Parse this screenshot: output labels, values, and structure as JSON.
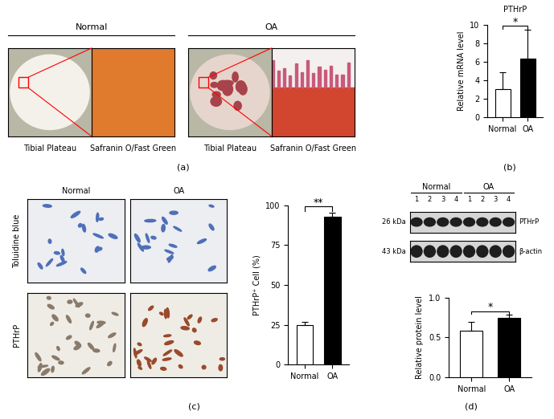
{
  "figure": {
    "a": {
      "label": "(a)",
      "groups": [
        {
          "name": "Normal",
          "captions": [
            "Tibial Plateau",
            "Safranin O/Fast Green"
          ]
        },
        {
          "name": "OA",
          "captions": [
            "Tibial Plateau",
            "Safranin O/Fast Green"
          ]
        }
      ]
    },
    "b": {
      "label": "(b)"
    },
    "c": {
      "label": "(c)",
      "columns": [
        "Normal",
        "OA"
      ],
      "rows": [
        "Toluidine blue",
        "PTHrP"
      ]
    },
    "d": {
      "label": "(d)",
      "groups": [
        "Normal",
        "OA"
      ],
      "lanes": [
        "1",
        "2",
        "3",
        "4"
      ],
      "bands": [
        {
          "size": "26 kDa",
          "name": "PTHrP"
        },
        {
          "size": "43 kDa",
          "name": "β-actin"
        }
      ]
    }
  },
  "chart_data": [
    {
      "type": "bar",
      "title": "PTHrP",
      "categories": [
        "Normal",
        "OA"
      ],
      "values": [
        3.1,
        6.4
      ],
      "errors": [
        1.8,
        3.1
      ],
      "ylabel": "Relative mRNA level",
      "ylim": [
        0,
        10
      ],
      "yticks": [
        0,
        2,
        4,
        6,
        8,
        10
      ],
      "colors": [
        "#ffffff",
        "#000000"
      ],
      "annotation": "*"
    },
    {
      "type": "bar",
      "categories": [
        "Normal",
        "OA"
      ],
      "values": [
        25,
        93
      ],
      "errors": [
        2,
        2.5
      ],
      "ylabel": "PTHrP⁺ Cell (%)",
      "ylim": [
        0,
        100
      ],
      "yticks": [
        0,
        25,
        50,
        75,
        100
      ],
      "colors": [
        "#ffffff",
        "#000000"
      ],
      "annotation": "**"
    },
    {
      "type": "bar",
      "categories": [
        "Normal",
        "OA"
      ],
      "values": [
        0.58,
        0.74
      ],
      "errors": [
        0.11,
        0.04
      ],
      "ylabel": "Relative protein level",
      "ylim": [
        0,
        1.0
      ],
      "yticks": [
        {
          "value": 0,
          "label": "0.0"
        },
        {
          "value": 0.5,
          "label": "0.5"
        },
        {
          "value": 1.0,
          "label": "1.0"
        }
      ],
      "colors": [
        "#ffffff",
        "#000000"
      ],
      "annotation": "*"
    }
  ]
}
